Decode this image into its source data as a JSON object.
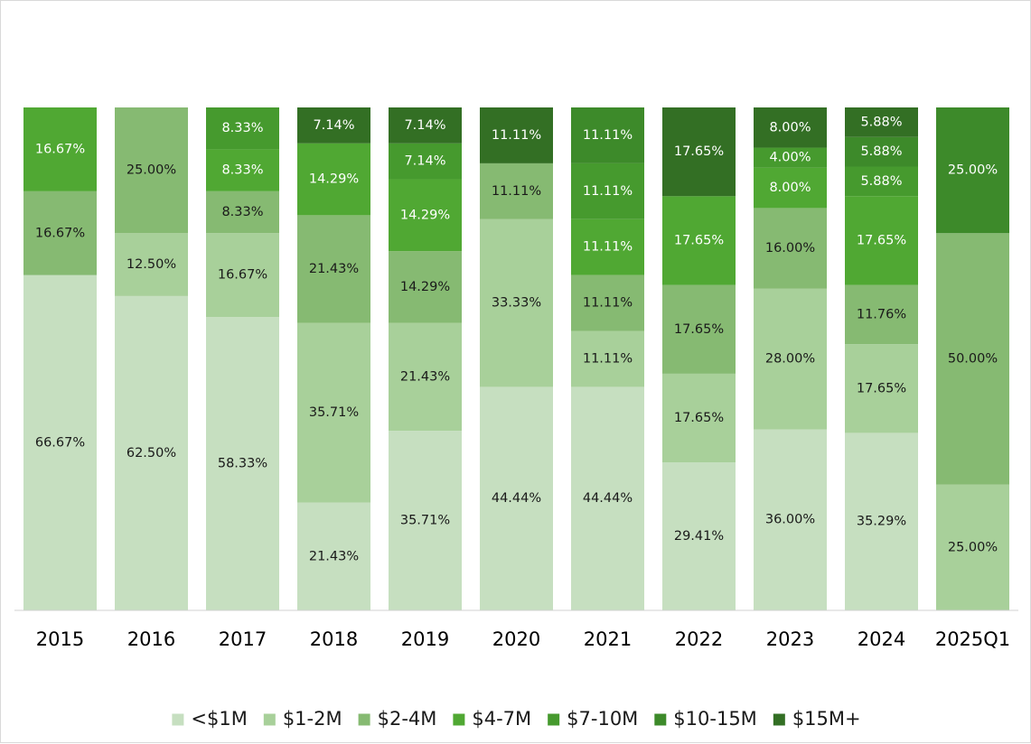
{
  "chart_data": {
    "type": "bar",
    "stacked": true,
    "percent_stacked": true,
    "title": "",
    "xlabel": "",
    "ylabel": "",
    "ylim": [
      0,
      100
    ],
    "grid": false,
    "legend_position": "bottom",
    "categories": [
      "2015",
      "2016",
      "2017",
      "2018",
      "2019",
      "2020",
      "2021",
      "2022",
      "2023",
      "2024",
      "2025Q1"
    ],
    "series": [
      {
        "name": "<$1M",
        "color": "#c6dfc0",
        "label_color": "#1a1a1a",
        "values": [
          66.67,
          62.5,
          58.33,
          21.43,
          35.71,
          44.44,
          44.44,
          29.41,
          36.0,
          35.29,
          0
        ],
        "labels": [
          "66.67%",
          "62.50%",
          "58.33%",
          "21.43%",
          "35.71%",
          "44.44%",
          "44.44%",
          "29.41%",
          "36.00%",
          "35.29%",
          ""
        ]
      },
      {
        "name": "$1-2M",
        "color": "#a8d09a",
        "label_color": "#1a1a1a",
        "values": [
          0,
          12.5,
          16.67,
          35.71,
          21.43,
          33.33,
          11.11,
          17.65,
          28.0,
          17.65,
          25.0
        ],
        "labels": [
          "",
          "12.50%",
          "16.67%",
          "35.71%",
          "21.43%",
          "33.33%",
          "11.11%",
          "17.65%",
          "28.00%",
          "17.65%",
          "25.00%"
        ]
      },
      {
        "name": "$2-4M",
        "color": "#86ba72",
        "label_color": "#1a1a1a",
        "values": [
          16.67,
          25.0,
          8.33,
          21.43,
          14.29,
          11.11,
          11.11,
          17.65,
          16.0,
          11.76,
          50.0
        ],
        "labels": [
          "16.67%",
          "25.00%",
          "8.33%",
          "21.43%",
          "14.29%",
          "11.11%",
          "11.11%",
          "17.65%",
          "16.00%",
          "11.76%",
          "50.00%"
        ]
      },
      {
        "name": "$4-7M",
        "color": "#50a833",
        "label_color": "#ffffff",
        "values": [
          16.67,
          0,
          8.33,
          14.29,
          14.29,
          0,
          11.11,
          17.65,
          8.0,
          17.65,
          0
        ],
        "labels": [
          "16.67%",
          "",
          "8.33%",
          "14.29%",
          "14.29%",
          "",
          "11.11%",
          "17.65%",
          "8.00%",
          "17.65%",
          ""
        ]
      },
      {
        "name": "$7-10M",
        "color": "#469a2e",
        "label_color": "#ffffff",
        "values": [
          0,
          0,
          8.33,
          0,
          7.14,
          0,
          11.11,
          0,
          4.0,
          5.88,
          0
        ],
        "labels": [
          "",
          "",
          "8.33%",
          "",
          "7.14%",
          "",
          "11.11%",
          "",
          "4.00%",
          "5.88%",
          ""
        ]
      },
      {
        "name": "$10-15M",
        "color": "#3d8a2a",
        "label_color": "#ffffff",
        "values": [
          0,
          0,
          0,
          0,
          0,
          0,
          11.11,
          0,
          0,
          5.88,
          25.0
        ],
        "labels": [
          "",
          "",
          "",
          "",
          "",
          "",
          "11.11%",
          "",
          "",
          "5.88%",
          "25.00%"
        ]
      },
      {
        "name": "$15M+",
        "color": "#336f24",
        "label_color": "#ffffff",
        "values": [
          0,
          0,
          0,
          7.14,
          7.14,
          11.11,
          0,
          17.65,
          8.0,
          5.88,
          0
        ],
        "labels": [
          "",
          "",
          "",
          "7.14%",
          "7.14%",
          "11.11%",
          "",
          "17.65%",
          "8.00%",
          "5.88%",
          ""
        ]
      }
    ]
  }
}
